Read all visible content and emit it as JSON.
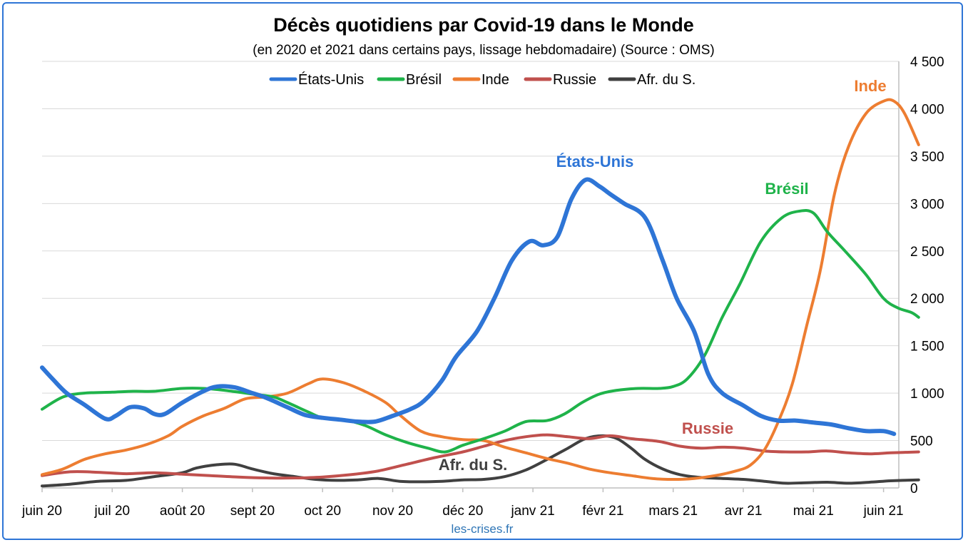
{
  "chart_data": {
    "type": "line",
    "title": "Décès quotidiens par Covid-19 dans le Monde",
    "subtitle": "(en 2020 et 2021 dans certains pays, lissage hebdomadaire) (Source : OMS)",
    "source_note": "les-crises.fr",
    "x_tick_labels": [
      "juin 20",
      "juil 20",
      "août 20",
      "sept 20",
      "oct 20",
      "nov 20",
      "déc 20",
      "janv 21",
      "févr 21",
      "mars 21",
      "avr 21",
      "mai 21",
      "juin 21"
    ],
    "x_unit": "months since juin 20",
    "y_axis": {
      "position": "right",
      "ylim": [
        0,
        4500
      ],
      "ticks": [
        0,
        500,
        1000,
        1500,
        2000,
        2500,
        3000,
        3500,
        4000,
        4500
      ],
      "tick_labels": [
        "0",
        "500",
        "1 000",
        "1 500",
        "2 000",
        "2 500",
        "3 000",
        "3 500",
        "4 000",
        "4 500"
      ],
      "grid": true
    },
    "legend_placement": "top",
    "series": [
      {
        "name": "États-Unis",
        "color": "#2e75d6",
        "annotation": "États-Unis",
        "points": [
          [
            0,
            1270
          ],
          [
            0.15,
            1150
          ],
          [
            0.35,
            1000
          ],
          [
            0.6,
            880
          ],
          [
            0.9,
            730
          ],
          [
            1.05,
            760
          ],
          [
            1.25,
            850
          ],
          [
            1.45,
            840
          ],
          [
            1.6,
            780
          ],
          [
            1.75,
            780
          ],
          [
            2.0,
            900
          ],
          [
            2.3,
            1020
          ],
          [
            2.5,
            1070
          ],
          [
            2.75,
            1060
          ],
          [
            3.0,
            1000
          ],
          [
            3.2,
            950
          ],
          [
            3.5,
            850
          ],
          [
            3.75,
            770
          ],
          [
            4.0,
            740
          ],
          [
            4.25,
            720
          ],
          [
            4.5,
            700
          ],
          [
            4.75,
            700
          ],
          [
            5.0,
            760
          ],
          [
            5.25,
            830
          ],
          [
            5.45,
            920
          ],
          [
            5.7,
            1130
          ],
          [
            5.9,
            1380
          ],
          [
            6.2,
            1650
          ],
          [
            6.45,
            2000
          ],
          [
            6.7,
            2400
          ],
          [
            6.95,
            2600
          ],
          [
            7.15,
            2560
          ],
          [
            7.35,
            2650
          ],
          [
            7.55,
            3050
          ],
          [
            7.75,
            3250
          ],
          [
            7.95,
            3180
          ],
          [
            8.1,
            3100
          ],
          [
            8.3,
            3000
          ],
          [
            8.6,
            2850
          ],
          [
            8.85,
            2400
          ],
          [
            9.05,
            2000
          ],
          [
            9.3,
            1650
          ],
          [
            9.5,
            1200
          ],
          [
            9.7,
            1000
          ],
          [
            10.0,
            870
          ],
          [
            10.25,
            760
          ],
          [
            10.5,
            710
          ],
          [
            10.75,
            710
          ],
          [
            11.0,
            690
          ],
          [
            11.25,
            670
          ],
          [
            11.5,
            630
          ],
          [
            11.75,
            600
          ],
          [
            12.0,
            600
          ],
          [
            12.15,
            570
          ]
        ]
      },
      {
        "name": "Brésil",
        "color": "#1fb34a",
        "annotation": "Brésil",
        "points": [
          [
            0,
            830
          ],
          [
            0.3,
            960
          ],
          [
            0.6,
            1000
          ],
          [
            1.0,
            1010
          ],
          [
            1.3,
            1020
          ],
          [
            1.6,
            1020
          ],
          [
            2.0,
            1050
          ],
          [
            2.3,
            1050
          ],
          [
            2.6,
            1030
          ],
          [
            3.0,
            990
          ],
          [
            3.3,
            960
          ],
          [
            3.5,
            900
          ],
          [
            3.8,
            800
          ],
          [
            4.0,
            740
          ],
          [
            4.3,
            720
          ],
          [
            4.6,
            660
          ],
          [
            4.9,
            560
          ],
          [
            5.2,
            480
          ],
          [
            5.5,
            420
          ],
          [
            5.75,
            380
          ],
          [
            6.0,
            450
          ],
          [
            6.3,
            520
          ],
          [
            6.6,
            600
          ],
          [
            6.9,
            700
          ],
          [
            7.2,
            710
          ],
          [
            7.45,
            780
          ],
          [
            7.7,
            900
          ],
          [
            7.95,
            990
          ],
          [
            8.2,
            1030
          ],
          [
            8.5,
            1050
          ],
          [
            8.8,
            1050
          ],
          [
            9.0,
            1070
          ],
          [
            9.2,
            1150
          ],
          [
            9.45,
            1400
          ],
          [
            9.7,
            1800
          ],
          [
            9.95,
            2150
          ],
          [
            10.25,
            2600
          ],
          [
            10.55,
            2850
          ],
          [
            10.8,
            2920
          ],
          [
            11.0,
            2900
          ],
          [
            11.2,
            2700
          ],
          [
            11.45,
            2500
          ],
          [
            11.75,
            2250
          ],
          [
            12.0,
            2000
          ],
          [
            12.2,
            1900
          ],
          [
            12.4,
            1850
          ],
          [
            12.5,
            1800
          ]
        ]
      },
      {
        "name": "Inde",
        "color": "#ed7d31",
        "annotation": "Inde",
        "points": [
          [
            0,
            140
          ],
          [
            0.3,
            200
          ],
          [
            0.6,
            300
          ],
          [
            0.9,
            360
          ],
          [
            1.2,
            400
          ],
          [
            1.5,
            460
          ],
          [
            1.8,
            550
          ],
          [
            2.0,
            650
          ],
          [
            2.3,
            760
          ],
          [
            2.6,
            840
          ],
          [
            2.9,
            940
          ],
          [
            3.2,
            960
          ],
          [
            3.5,
            1000
          ],
          [
            3.8,
            1100
          ],
          [
            4.0,
            1150
          ],
          [
            4.3,
            1110
          ],
          [
            4.6,
            1020
          ],
          [
            4.9,
            900
          ],
          [
            5.1,
            770
          ],
          [
            5.4,
            600
          ],
          [
            5.7,
            540
          ],
          [
            6.0,
            510
          ],
          [
            6.3,
            500
          ],
          [
            6.6,
            430
          ],
          [
            6.9,
            370
          ],
          [
            7.2,
            310
          ],
          [
            7.5,
            260
          ],
          [
            7.8,
            200
          ],
          [
            8.1,
            160
          ],
          [
            8.4,
            130
          ],
          [
            8.7,
            100
          ],
          [
            9.0,
            90
          ],
          [
            9.3,
            100
          ],
          [
            9.6,
            130
          ],
          [
            9.9,
            180
          ],
          [
            10.1,
            240
          ],
          [
            10.3,
            400
          ],
          [
            10.5,
            700
          ],
          [
            10.7,
            1100
          ],
          [
            10.9,
            1700
          ],
          [
            11.1,
            2300
          ],
          [
            11.3,
            3100
          ],
          [
            11.5,
            3600
          ],
          [
            11.75,
            3950
          ],
          [
            12.0,
            4080
          ],
          [
            12.15,
            4080
          ],
          [
            12.3,
            3950
          ],
          [
            12.5,
            3620
          ]
        ]
      },
      {
        "name": "Russie",
        "color": "#c0504d",
        "annotation": "Russie",
        "points": [
          [
            0,
            130
          ],
          [
            0.4,
            170
          ],
          [
            0.8,
            165
          ],
          [
            1.2,
            150
          ],
          [
            1.6,
            160
          ],
          [
            2.0,
            145
          ],
          [
            2.4,
            130
          ],
          [
            2.8,
            115
          ],
          [
            3.2,
            105
          ],
          [
            3.6,
            105
          ],
          [
            4.0,
            115
          ],
          [
            4.4,
            140
          ],
          [
            4.8,
            180
          ],
          [
            5.2,
            250
          ],
          [
            5.6,
            320
          ],
          [
            6.0,
            380
          ],
          [
            6.3,
            440
          ],
          [
            6.6,
            500
          ],
          [
            6.9,
            540
          ],
          [
            7.2,
            560
          ],
          [
            7.5,
            540
          ],
          [
            7.8,
            520
          ],
          [
            8.1,
            550
          ],
          [
            8.4,
            520
          ],
          [
            8.8,
            490
          ],
          [
            9.1,
            440
          ],
          [
            9.4,
            420
          ],
          [
            9.7,
            430
          ],
          [
            10.0,
            420
          ],
          [
            10.3,
            390
          ],
          [
            10.6,
            380
          ],
          [
            10.9,
            380
          ],
          [
            11.2,
            390
          ],
          [
            11.5,
            370
          ],
          [
            11.8,
            360
          ],
          [
            12.1,
            370
          ],
          [
            12.5,
            380
          ]
        ]
      },
      {
        "name": "Afr. du S.",
        "color": "#404040",
        "annotation": "Afr. du S.",
        "points": [
          [
            0,
            20
          ],
          [
            0.4,
            40
          ],
          [
            0.8,
            70
          ],
          [
            1.2,
            80
          ],
          [
            1.6,
            120
          ],
          [
            2.0,
            160
          ],
          [
            2.2,
            210
          ],
          [
            2.5,
            245
          ],
          [
            2.75,
            250
          ],
          [
            3.0,
            200
          ],
          [
            3.3,
            150
          ],
          [
            3.6,
            120
          ],
          [
            3.9,
            90
          ],
          [
            4.2,
            80
          ],
          [
            4.5,
            85
          ],
          [
            4.8,
            100
          ],
          [
            5.1,
            70
          ],
          [
            5.4,
            65
          ],
          [
            5.7,
            70
          ],
          [
            6.0,
            85
          ],
          [
            6.3,
            90
          ],
          [
            6.6,
            120
          ],
          [
            6.9,
            190
          ],
          [
            7.2,
            300
          ],
          [
            7.5,
            420
          ],
          [
            7.75,
            520
          ],
          [
            8.0,
            550
          ],
          [
            8.2,
            520
          ],
          [
            8.4,
            420
          ],
          [
            8.6,
            300
          ],
          [
            8.85,
            200
          ],
          [
            9.1,
            140
          ],
          [
            9.4,
            110
          ],
          [
            9.7,
            100
          ],
          [
            10.0,
            90
          ],
          [
            10.3,
            70
          ],
          [
            10.6,
            50
          ],
          [
            10.9,
            55
          ],
          [
            11.2,
            60
          ],
          [
            11.5,
            50
          ],
          [
            11.8,
            60
          ],
          [
            12.1,
            75
          ],
          [
            12.5,
            85
          ]
        ]
      }
    ],
    "annotation_labels": [
      {
        "series": "États-Unis",
        "text": "États-Unis"
      },
      {
        "series": "Brésil",
        "text": "Brésil"
      },
      {
        "series": "Inde",
        "text": "Inde"
      },
      {
        "series": "Russie",
        "text": "Russie"
      },
      {
        "series": "Afr. du S.",
        "text": "Afr. du S."
      }
    ]
  }
}
